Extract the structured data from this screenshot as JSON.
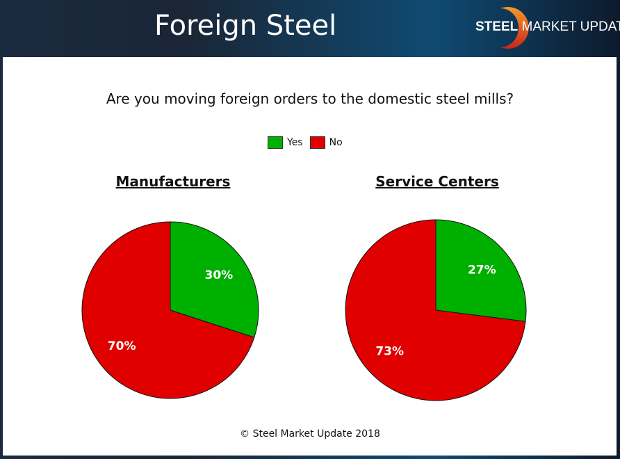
{
  "header": {
    "title": "Foreign Steel",
    "logo_text_bold": "STEEL",
    "logo_text_mid": "MARKET",
    "logo_text_light": "UPDATE"
  },
  "footer": "© Steel Market Update 2018",
  "chart_data": {
    "type": "pie",
    "title": "Are you moving foreign orders to the domestic steel mills?",
    "legend": {
      "placement": "top",
      "entries": [
        {
          "label": "Yes",
          "color": "#00b000"
        },
        {
          "label": "No",
          "color": "#e00000"
        }
      ]
    },
    "charts": [
      {
        "title": "Manufacturers",
        "slices": [
          {
            "label": "Yes",
            "value": 30,
            "text": "30%"
          },
          {
            "label": "No",
            "value": 70,
            "text": "70%"
          }
        ]
      },
      {
        "title": "Service Centers",
        "slices": [
          {
            "label": "Yes",
            "value": 27,
            "text": "27%"
          },
          {
            "label": "No",
            "value": 73,
            "text": "73%"
          }
        ]
      }
    ]
  }
}
